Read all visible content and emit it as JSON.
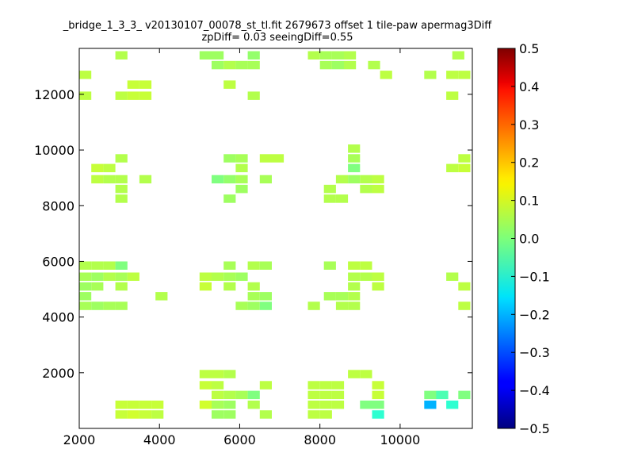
{
  "chart_data": {
    "type": "heatmap",
    "title": "_bridge_1_3_3_ v20130107_00078_st_tl.fit 2679673 offset 1 tile-paw apermag3Diff",
    "subtitle": "zpDiff= 0.03 seeingDiff=0.55",
    "xlabel": "",
    "ylabel": "",
    "xlim": [
      2000,
      11800
    ],
    "ylim": [
      0,
      13650
    ],
    "xticks": [
      "2000",
      "4000",
      "6000",
      "8000",
      "10000"
    ],
    "yticks": [
      "2000",
      "4000",
      "6000",
      "8000",
      "10000",
      "12000"
    ],
    "colorbar": {
      "min": -0.5,
      "max": 0.5,
      "ticks": [
        "0.5",
        "0.4",
        "0.3",
        "0.2",
        "0.1",
        "0.0",
        "−0.1",
        "−0.2",
        "−0.3",
        "−0.4",
        "−0.5"
      ]
    },
    "cell_size": 300,
    "cells": [
      {
        "x": 3050,
        "y": 13400,
        "v": 0.05
      },
      {
        "x": 5150,
        "y": 13400,
        "v": 0.03
      },
      {
        "x": 5450,
        "y": 13400,
        "v": 0.03
      },
      {
        "x": 6350,
        "y": 13400,
        "v": 0.02
      },
      {
        "x": 7850,
        "y": 13400,
        "v": 0.05
      },
      {
        "x": 8150,
        "y": 13400,
        "v": 0.04
      },
      {
        "x": 8450,
        "y": 13400,
        "v": 0.04
      },
      {
        "x": 8750,
        "y": 13400,
        "v": 0.05
      },
      {
        "x": 11450,
        "y": 13400,
        "v": 0.05
      },
      {
        "x": 5450,
        "y": 13050,
        "v": 0.03
      },
      {
        "x": 5750,
        "y": 13050,
        "v": 0.05
      },
      {
        "x": 6050,
        "y": 13050,
        "v": 0.04
      },
      {
        "x": 6350,
        "y": 13050,
        "v": 0.04
      },
      {
        "x": 8150,
        "y": 13050,
        "v": 0.04
      },
      {
        "x": 8450,
        "y": 13050,
        "v": 0.03
      },
      {
        "x": 8750,
        "y": 13050,
        "v": 0.05
      },
      {
        "x": 9350,
        "y": 13050,
        "v": 0.05
      },
      {
        "x": 2150,
        "y": 12700,
        "v": 0.06
      },
      {
        "x": 9650,
        "y": 12700,
        "v": 0.06
      },
      {
        "x": 10750,
        "y": 12700,
        "v": 0.05
      },
      {
        "x": 11300,
        "y": 12700,
        "v": 0.06
      },
      {
        "x": 11600,
        "y": 12700,
        "v": 0.06
      },
      {
        "x": 3350,
        "y": 12350,
        "v": 0.07
      },
      {
        "x": 3650,
        "y": 12350,
        "v": 0.07
      },
      {
        "x": 5750,
        "y": 12350,
        "v": 0.06
      },
      {
        "x": 2150,
        "y": 11950,
        "v": 0.06
      },
      {
        "x": 3050,
        "y": 11950,
        "v": 0.06
      },
      {
        "x": 3350,
        "y": 11950,
        "v": 0.07
      },
      {
        "x": 3650,
        "y": 11950,
        "v": 0.07
      },
      {
        "x": 6350,
        "y": 11950,
        "v": 0.05
      },
      {
        "x": 11300,
        "y": 11950,
        "v": 0.06
      },
      {
        "x": 8850,
        "y": 10050,
        "v": 0.05
      },
      {
        "x": 3050,
        "y": 9700,
        "v": 0.05
      },
      {
        "x": 5750,
        "y": 9700,
        "v": 0.03
      },
      {
        "x": 6050,
        "y": 9700,
        "v": 0.04
      },
      {
        "x": 6650,
        "y": 9700,
        "v": 0.06
      },
      {
        "x": 6950,
        "y": 9700,
        "v": 0.06
      },
      {
        "x": 8850,
        "y": 9700,
        "v": 0.04
      },
      {
        "x": 11600,
        "y": 9700,
        "v": 0.06
      },
      {
        "x": 2450,
        "y": 9350,
        "v": 0.07
      },
      {
        "x": 2750,
        "y": 9350,
        "v": 0.06
      },
      {
        "x": 6050,
        "y": 9350,
        "v": 0.05
      },
      {
        "x": 8850,
        "y": 9350,
        "v": 0.0
      },
      {
        "x": 11300,
        "y": 9350,
        "v": 0.06
      },
      {
        "x": 11600,
        "y": 9350,
        "v": 0.07
      },
      {
        "x": 2450,
        "y": 8950,
        "v": 0.06
      },
      {
        "x": 2750,
        "y": 8950,
        "v": 0.05
      },
      {
        "x": 3050,
        "y": 8950,
        "v": 0.05
      },
      {
        "x": 3650,
        "y": 8950,
        "v": 0.05
      },
      {
        "x": 5450,
        "y": 8950,
        "v": 0.0
      },
      {
        "x": 5750,
        "y": 8950,
        "v": 0.02
      },
      {
        "x": 6050,
        "y": 8950,
        "v": 0.04
      },
      {
        "x": 6650,
        "y": 8950,
        "v": 0.04
      },
      {
        "x": 8550,
        "y": 8950,
        "v": 0.05
      },
      {
        "x": 8850,
        "y": 8950,
        "v": 0.03
      },
      {
        "x": 9150,
        "y": 8950,
        "v": 0.05
      },
      {
        "x": 9450,
        "y": 8950,
        "v": 0.06
      },
      {
        "x": 3050,
        "y": 8600,
        "v": 0.05
      },
      {
        "x": 6050,
        "y": 8600,
        "v": 0.03
      },
      {
        "x": 8250,
        "y": 8600,
        "v": 0.05
      },
      {
        "x": 9150,
        "y": 8600,
        "v": 0.05
      },
      {
        "x": 9450,
        "y": 8600,
        "v": 0.06
      },
      {
        "x": 3050,
        "y": 8250,
        "v": 0.05
      },
      {
        "x": 5750,
        "y": 8250,
        "v": 0.03
      },
      {
        "x": 8250,
        "y": 8250,
        "v": 0.05
      },
      {
        "x": 8550,
        "y": 8250,
        "v": 0.05
      },
      {
        "x": 2150,
        "y": 5850,
        "v": 0.05
      },
      {
        "x": 2450,
        "y": 5850,
        "v": 0.05
      },
      {
        "x": 2750,
        "y": 5850,
        "v": 0.05
      },
      {
        "x": 3050,
        "y": 5850,
        "v": 0.0
      },
      {
        "x": 5750,
        "y": 5850,
        "v": 0.04
      },
      {
        "x": 6350,
        "y": 5850,
        "v": 0.05
      },
      {
        "x": 6650,
        "y": 5850,
        "v": 0.04
      },
      {
        "x": 8250,
        "y": 5850,
        "v": 0.04
      },
      {
        "x": 8850,
        "y": 5850,
        "v": 0.06
      },
      {
        "x": 9150,
        "y": 5850,
        "v": 0.06
      },
      {
        "x": 2150,
        "y": 5450,
        "v": 0.04
      },
      {
        "x": 2450,
        "y": 5450,
        "v": 0.03
      },
      {
        "x": 2750,
        "y": 5450,
        "v": 0.05
      },
      {
        "x": 3050,
        "y": 5450,
        "v": 0.04
      },
      {
        "x": 3350,
        "y": 5450,
        "v": 0.06
      },
      {
        "x": 5150,
        "y": 5450,
        "v": 0.06
      },
      {
        "x": 5450,
        "y": 5450,
        "v": 0.05
      },
      {
        "x": 5750,
        "y": 5450,
        "v": 0.04
      },
      {
        "x": 6050,
        "y": 5450,
        "v": 0.03
      },
      {
        "x": 8850,
        "y": 5450,
        "v": 0.05
      },
      {
        "x": 9150,
        "y": 5450,
        "v": 0.05
      },
      {
        "x": 9450,
        "y": 5450,
        "v": 0.06
      },
      {
        "x": 11300,
        "y": 5450,
        "v": 0.05
      },
      {
        "x": 2150,
        "y": 5100,
        "v": 0.03
      },
      {
        "x": 2450,
        "y": 5100,
        "v": 0.04
      },
      {
        "x": 3050,
        "y": 5100,
        "v": 0.05
      },
      {
        "x": 5150,
        "y": 5100,
        "v": 0.07
      },
      {
        "x": 5750,
        "y": 5100,
        "v": 0.05
      },
      {
        "x": 6350,
        "y": 5100,
        "v": 0.05
      },
      {
        "x": 8850,
        "y": 5100,
        "v": 0.05
      },
      {
        "x": 9450,
        "y": 5100,
        "v": 0.06
      },
      {
        "x": 11600,
        "y": 5100,
        "v": 0.06
      },
      {
        "x": 2150,
        "y": 4750,
        "v": 0.03
      },
      {
        "x": 4050,
        "y": 4750,
        "v": 0.05
      },
      {
        "x": 6350,
        "y": 4750,
        "v": 0.04
      },
      {
        "x": 6650,
        "y": 4750,
        "v": 0.03
      },
      {
        "x": 8250,
        "y": 4750,
        "v": 0.04
      },
      {
        "x": 8550,
        "y": 4750,
        "v": 0.04
      },
      {
        "x": 8850,
        "y": 4750,
        "v": 0.05
      },
      {
        "x": 2150,
        "y": 4400,
        "v": 0.04
      },
      {
        "x": 2450,
        "y": 4400,
        "v": 0.03
      },
      {
        "x": 2750,
        "y": 4400,
        "v": 0.04
      },
      {
        "x": 3050,
        "y": 4400,
        "v": 0.04
      },
      {
        "x": 6050,
        "y": 4400,
        "v": 0.04
      },
      {
        "x": 6350,
        "y": 4400,
        "v": 0.03
      },
      {
        "x": 6650,
        "y": 4400,
        "v": 0.0
      },
      {
        "x": 7850,
        "y": 4400,
        "v": 0.05
      },
      {
        "x": 8550,
        "y": 4400,
        "v": 0.05
      },
      {
        "x": 8850,
        "y": 4400,
        "v": 0.05
      },
      {
        "x": 11600,
        "y": 4400,
        "v": 0.06
      },
      {
        "x": 5150,
        "y": 1950,
        "v": 0.06
      },
      {
        "x": 5450,
        "y": 1950,
        "v": 0.06
      },
      {
        "x": 5750,
        "y": 1950,
        "v": 0.05
      },
      {
        "x": 8850,
        "y": 1950,
        "v": 0.06
      },
      {
        "x": 9150,
        "y": 1950,
        "v": 0.06
      },
      {
        "x": 5150,
        "y": 1550,
        "v": 0.07
      },
      {
        "x": 5450,
        "y": 1550,
        "v": 0.06
      },
      {
        "x": 6650,
        "y": 1550,
        "v": 0.06
      },
      {
        "x": 7850,
        "y": 1550,
        "v": 0.06
      },
      {
        "x": 8150,
        "y": 1550,
        "v": 0.06
      },
      {
        "x": 8450,
        "y": 1550,
        "v": 0.06
      },
      {
        "x": 9450,
        "y": 1550,
        "v": 0.07
      },
      {
        "x": 5450,
        "y": 1200,
        "v": 0.06
      },
      {
        "x": 5750,
        "y": 1200,
        "v": 0.05
      },
      {
        "x": 6050,
        "y": 1200,
        "v": 0.04
      },
      {
        "x": 6350,
        "y": 1200,
        "v": 0.0
      },
      {
        "x": 7850,
        "y": 1200,
        "v": 0.06
      },
      {
        "x": 8150,
        "y": 1200,
        "v": 0.06
      },
      {
        "x": 8450,
        "y": 1200,
        "v": 0.06
      },
      {
        "x": 9450,
        "y": 1200,
        "v": 0.07
      },
      {
        "x": 10750,
        "y": 1200,
        "v": 0.0
      },
      {
        "x": 11050,
        "y": 1200,
        "v": -0.05
      },
      {
        "x": 11600,
        "y": 1200,
        "v": 0.0
      },
      {
        "x": 3050,
        "y": 850,
        "v": 0.07
      },
      {
        "x": 3350,
        "y": 850,
        "v": 0.07
      },
      {
        "x": 3650,
        "y": 850,
        "v": 0.07
      },
      {
        "x": 3950,
        "y": 850,
        "v": 0.07
      },
      {
        "x": 5150,
        "y": 850,
        "v": 0.08
      },
      {
        "x": 5450,
        "y": 850,
        "v": 0.04
      },
      {
        "x": 5750,
        "y": 850,
        "v": 0.03
      },
      {
        "x": 6350,
        "y": 850,
        "v": 0.05
      },
      {
        "x": 7850,
        "y": 850,
        "v": 0.06
      },
      {
        "x": 8150,
        "y": 850,
        "v": 0.06
      },
      {
        "x": 8450,
        "y": 850,
        "v": 0.06
      },
      {
        "x": 9150,
        "y": 850,
        "v": 0.0
      },
      {
        "x": 9450,
        "y": 850,
        "v": 0.0
      },
      {
        "x": 10750,
        "y": 850,
        "v": -0.2
      },
      {
        "x": 11300,
        "y": 850,
        "v": -0.08
      },
      {
        "x": 3050,
        "y": 500,
        "v": 0.07
      },
      {
        "x": 3350,
        "y": 500,
        "v": 0.08
      },
      {
        "x": 3650,
        "y": 500,
        "v": 0.07
      },
      {
        "x": 3950,
        "y": 500,
        "v": 0.06
      },
      {
        "x": 5450,
        "y": 500,
        "v": 0.03
      },
      {
        "x": 5750,
        "y": 500,
        "v": 0.03
      },
      {
        "x": 6650,
        "y": 500,
        "v": 0.05
      },
      {
        "x": 7850,
        "y": 500,
        "v": 0.06
      },
      {
        "x": 8150,
        "y": 500,
        "v": 0.06
      },
      {
        "x": 9450,
        "y": 500,
        "v": -0.08
      }
    ]
  }
}
